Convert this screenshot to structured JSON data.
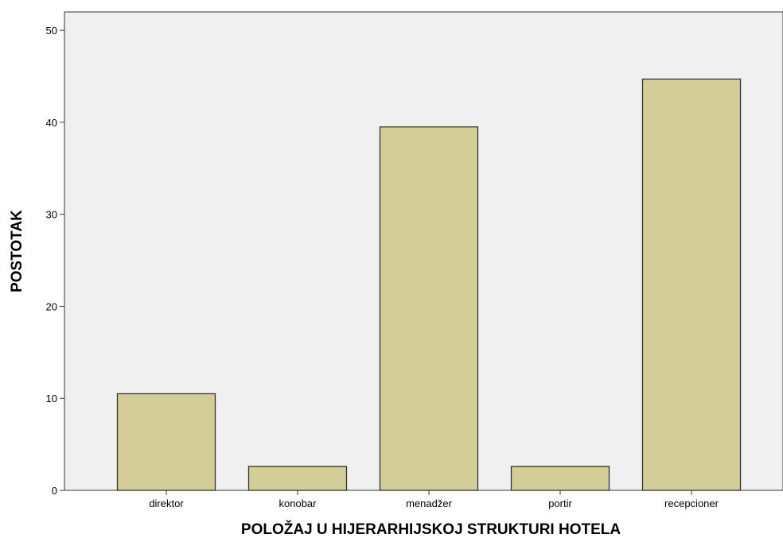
{
  "chart_data": {
    "type": "bar",
    "title": "",
    "xlabel": "POLOŽAJ  U HIJERARHIJSKOJ STRUKTURI HOTELA",
    "ylabel": "POSTOTAK",
    "categories": [
      "direktor",
      "konobar",
      "menadžer",
      "portir",
      "recepcioner"
    ],
    "values": [
      10.5,
      2.6,
      39.5,
      2.6,
      44.7
    ],
    "ylim": [
      0,
      52
    ],
    "yticks": [
      0,
      10,
      20,
      30,
      40,
      50
    ],
    "grid": false,
    "colors": {
      "bar_fill": "#d3ce97",
      "bar_stroke": "#333333",
      "plot_background": "#f0f0f0",
      "axis": "#333333"
    }
  }
}
